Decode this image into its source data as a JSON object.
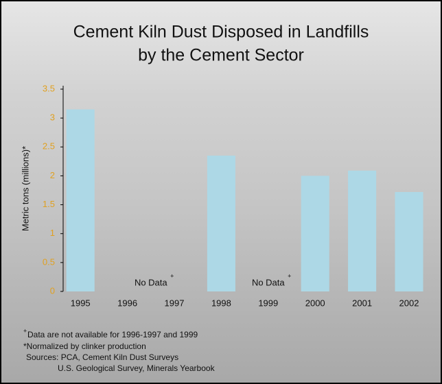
{
  "chart_data": {
    "type": "bar",
    "title": [
      "Cement Kiln Dust Disposed in Landfills",
      "by the Cement Sector"
    ],
    "y_label": "Metric tons (millions)*",
    "categories": [
      "1995",
      "1996",
      "1997",
      "1998",
      "1999",
      "2000",
      "2001",
      "2002"
    ],
    "values": [
      3.15,
      null,
      null,
      2.35,
      null,
      2.0,
      2.09,
      1.72
    ],
    "color": "#add8e6",
    "ylim": [
      0,
      3.5
    ],
    "yticks": [
      0,
      0.5,
      1,
      1.5,
      2,
      2.5,
      3,
      3.5
    ],
    "tick_color": "#e0a020",
    "annotations": [
      "No Data",
      "No Data"
    ],
    "annotation_marker": "+",
    "notes": [
      "Data are not available for 1996-1997 and 1999",
      "*Normalized by clinker production",
      "Sources: PCA, Cement Kiln Dust Surveys",
      "U.S. Geological Survey, Minerals Yearbook"
    ]
  }
}
